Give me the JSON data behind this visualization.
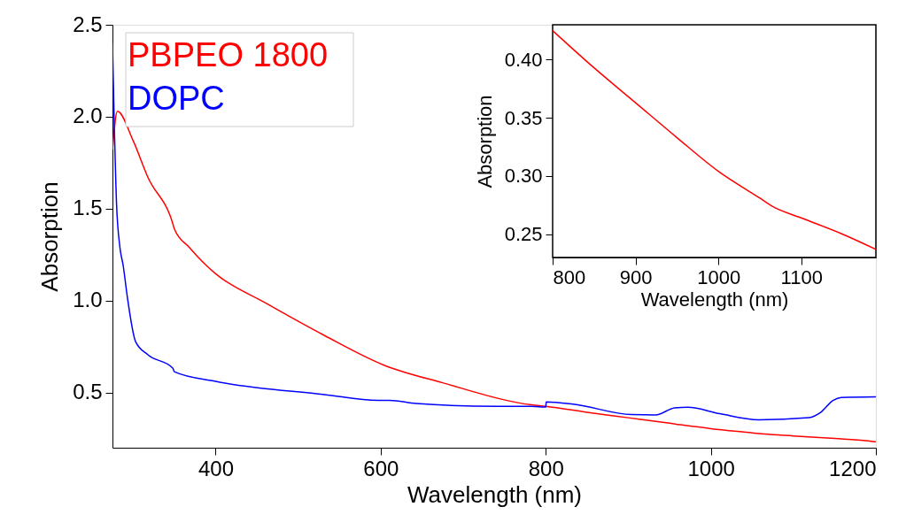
{
  "chart_data": [
    {
      "type": "line",
      "xlabel": "Wavelength (nm)",
      "ylabel": "Absorption",
      "xlim": [
        275,
        1200
      ],
      "ylim": [
        0.2,
        2.5
      ],
      "xticks": [
        400,
        600,
        800,
        1000,
        1200
      ],
      "yticks": [
        0.5,
        {
          "value": 1.0,
          "label": "1.0"
        },
        1.5,
        {
          "value": 2.0,
          "label": "2.0"
        },
        2.5
      ],
      "legend": "top left",
      "grid": false,
      "series": [
        {
          "name": "PBPEO 1800",
          "color": "#ff0000",
          "x": [
            275,
            281,
            300,
            318,
            348,
            350,
            368,
            389,
            400,
            461,
            532,
            604,
            675,
            783,
            800,
            850,
            900,
            950,
            1000,
            1050,
            1065,
            1100,
            1150,
            1190,
            1200
          ],
          "values": [
            1.82,
            2.03,
            1.87,
            1.67,
            1.42,
            1.39,
            1.29,
            1.19,
            1.146,
            0.986,
            0.81,
            0.649,
            0.553,
            0.433,
            0.425,
            0.393,
            0.363,
            0.333,
            0.304,
            0.281,
            0.274,
            0.264,
            0.25,
            0.237,
            0.232
          ]
        },
        {
          "name": "DOPC",
          "color": "#0000ff",
          "x": [
            275,
            280,
            284,
            288,
            293,
            303,
            318,
            348,
            350,
            400,
            532,
            597,
            611,
            643,
            742,
            783,
            800,
            800.5,
            833,
            904,
            933,
            956,
            972,
            1011,
            1058,
            1119,
            1133,
            1148,
            1158,
            1200
          ],
          "values": [
            2.4,
            1.52,
            1.29,
            1.19,
            1.02,
            0.777,
            0.705,
            0.633,
            0.613,
            0.561,
            0.489,
            0.457,
            0.458,
            0.44,
            0.425,
            0.425,
            0.421,
            0.449,
            0.437,
            0.38,
            0.378,
            0.416,
            0.42,
            0.385,
            0.352,
            0.364,
            0.392,
            0.457,
            0.473,
            0.477
          ]
        }
      ]
    },
    {
      "type": "line",
      "xlabel": "Wavelength (nm)",
      "ylabel": "Absorption",
      "xlim": [
        800,
        1190
      ],
      "ylim": [
        0.23,
        0.43
      ],
      "xticks": [
        800,
        900,
        1000,
        1100
      ],
      "yticks": [
        0.25,
        {
          "value": 0.3,
          "label": "0.30"
        },
        0.35,
        {
          "value": 0.4,
          "label": "0.40"
        }
      ],
      "grid": false,
      "series": [
        {
          "color": "#ff0000",
          "x": [
            800,
            850,
            900,
            950,
            1000,
            1050,
            1065,
            1100,
            1150,
            1190
          ],
          "values": [
            0.425,
            0.393,
            0.363,
            0.333,
            0.304,
            0.281,
            0.274,
            0.264,
            0.25,
            0.237
          ]
        }
      ]
    }
  ]
}
